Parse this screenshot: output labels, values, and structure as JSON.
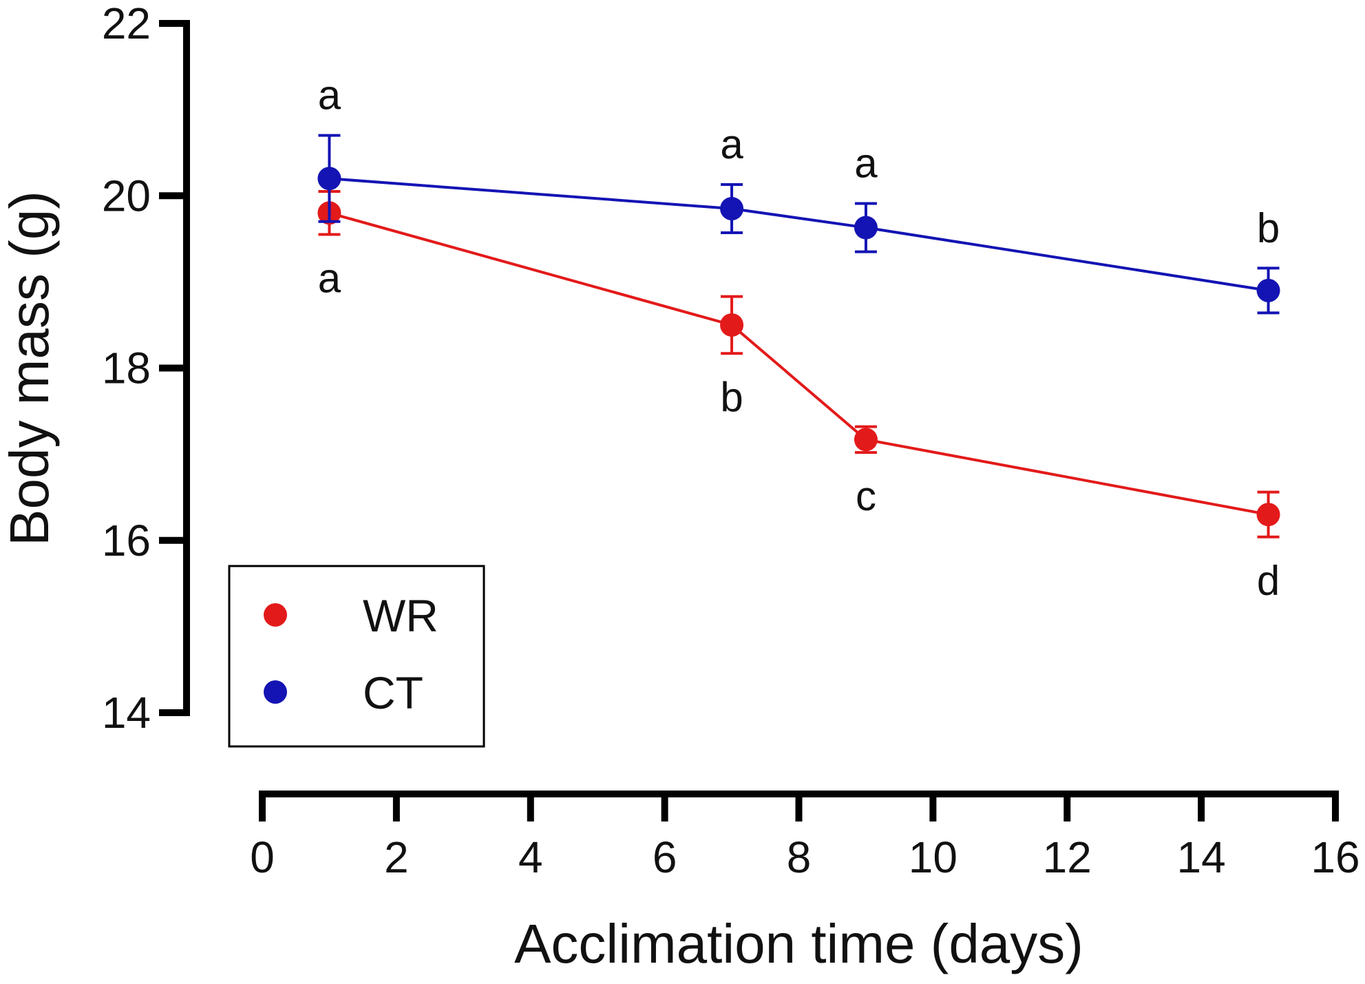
{
  "chart_data": {
    "type": "line",
    "title": "",
    "xlabel": "Acclimation time (days)",
    "ylabel": "Body mass (g)",
    "xlim": [
      0,
      16
    ],
    "ylim": [
      14,
      22
    ],
    "xticks": [
      0,
      2,
      4,
      6,
      8,
      10,
      12,
      14,
      16
    ],
    "yticks": [
      14,
      16,
      18,
      20,
      22
    ],
    "x_tick_labels": [
      "0",
      "2",
      "4",
      "6",
      "8",
      "10",
      "12",
      "14",
      "16"
    ],
    "y_tick_labels": [
      "14",
      "16",
      "18",
      "20",
      "22"
    ],
    "grid": false,
    "legend_position": "bottom-left",
    "series": [
      {
        "name": "WR",
        "color": "#e31a1a",
        "x": [
          1,
          7,
          9,
          15
        ],
        "values": [
          19.8,
          18.5,
          17.17,
          16.3
        ],
        "error": [
          0.25,
          0.33,
          0.15,
          0.26
        ],
        "letters": [
          "a",
          "b",
          "c",
          "d"
        ],
        "letter_position": "below"
      },
      {
        "name": "CT",
        "color": "#1414b4",
        "x": [
          1,
          7,
          9,
          15
        ],
        "values": [
          20.2,
          19.85,
          19.63,
          18.9
        ],
        "error": [
          0.5,
          0.28,
          0.28,
          0.26
        ],
        "letters": [
          "a",
          "a",
          "a",
          "b"
        ],
        "letter_position": "above"
      }
    ]
  }
}
